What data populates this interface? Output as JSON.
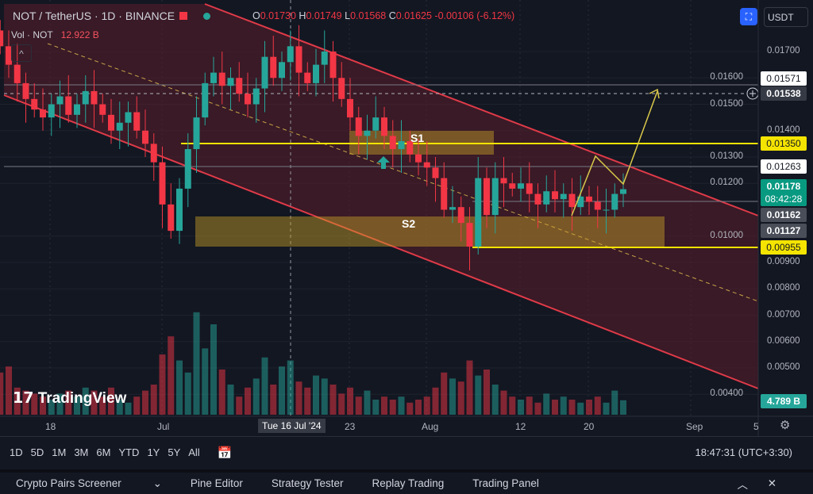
{
  "header": {
    "symbol": "NOT / TetherUS · 1D · BINANCE",
    "o_label": "O",
    "o": "0.01730",
    "h_label": "H",
    "h": "0.01749",
    "l_label": "L",
    "l": "0.01568",
    "c_label": "C",
    "c": "0.01625",
    "change": "-0.00106 (-6.12%)"
  },
  "volume": {
    "label": "Vol · NOT",
    "value": "12.922 B",
    "last": "4.789 B"
  },
  "currency": "USDT",
  "price_ticks": [
    "0.01700",
    "0.01600",
    "0.01500",
    "0.01400",
    "0.01300",
    "0.01200",
    "0.01000",
    "0.00900",
    "0.00800",
    "0.00700",
    "0.00600",
    "0.00500",
    "0.00400"
  ],
  "price_labels": {
    "p1571": "0.01571",
    "p1538": "0.01538",
    "p1350": "0.01350",
    "p1263": "0.01263",
    "last": "0.01178",
    "countdown": "08:42:28",
    "p1162": "0.01162",
    "p1127": "0.01127",
    "p955": "0.00955"
  },
  "zones": {
    "s1": "S1",
    "s2": "S2"
  },
  "time_ticks": [
    "18",
    "Jul",
    "23",
    "Aug",
    "12",
    "20",
    "Sep",
    "5"
  ],
  "crosshair_date": "Tue 16 Jul '24",
  "intervals": [
    "1D",
    "5D",
    "1M",
    "3M",
    "6M",
    "YTD",
    "1Y",
    "5Y",
    "All"
  ],
  "clock": "18:47:31 (UTC+3:30)",
  "bottom_tabs": [
    "Crypto Pairs Screener",
    "Pine Editor",
    "Strategy Tester",
    "Replay Trading",
    "Trading Panel"
  ],
  "brand": "TradingView",
  "colors": {
    "up": "#26a69a",
    "down": "#f23645",
    "zone": "#f0c419",
    "channel": "#e03a48"
  },
  "candles_close": [
    0.0172,
    0.0165,
    0.0158,
    0.0152,
    0.0148,
    0.0145,
    0.015,
    0.0153,
    0.0146,
    0.015,
    0.0155,
    0.015,
    0.0146,
    0.014,
    0.0143,
    0.0147,
    0.014,
    0.0135,
    0.0128,
    0.0112,
    0.0102,
    0.0118,
    0.0133,
    0.0145,
    0.0158,
    0.0162,
    0.0157,
    0.016,
    0.0154,
    0.015,
    0.0156,
    0.0168,
    0.016,
    0.0166,
    0.0172,
    0.0162,
    0.0158,
    0.0165,
    0.017,
    0.016,
    0.0152,
    0.0145,
    0.0138,
    0.014,
    0.0145,
    0.0138,
    0.0133,
    0.0136,
    0.0131,
    0.0128,
    0.0126,
    0.0122,
    0.011,
    0.0111,
    0.0105,
    0.0096,
    0.0122,
    0.0108,
    0.0122,
    0.012,
    0.0118,
    0.012,
    0.0116,
    0.0112,
    0.0117,
    0.0114,
    0.0116,
    0.0111,
    0.0115,
    0.0113,
    0.011,
    0.011,
    0.0116,
    0.01178
  ],
  "volumes_b": [
    14,
    16,
    9,
    8,
    7,
    6,
    5,
    7,
    8,
    6,
    9,
    8,
    6,
    9,
    5,
    4,
    6,
    8,
    10,
    20,
    26,
    18,
    14,
    34,
    22,
    30,
    15,
    10,
    6,
    9,
    12,
    19,
    10,
    16,
    18,
    11,
    9,
    13,
    12,
    10,
    7,
    9,
    6,
    8,
    5,
    6,
    5,
    6,
    4,
    5,
    6,
    9,
    14,
    12,
    11,
    18,
    13,
    15,
    10,
    8,
    6,
    5,
    6,
    4,
    7,
    5,
    6,
    5,
    4,
    5,
    6,
    4,
    8,
    4.789
  ]
}
